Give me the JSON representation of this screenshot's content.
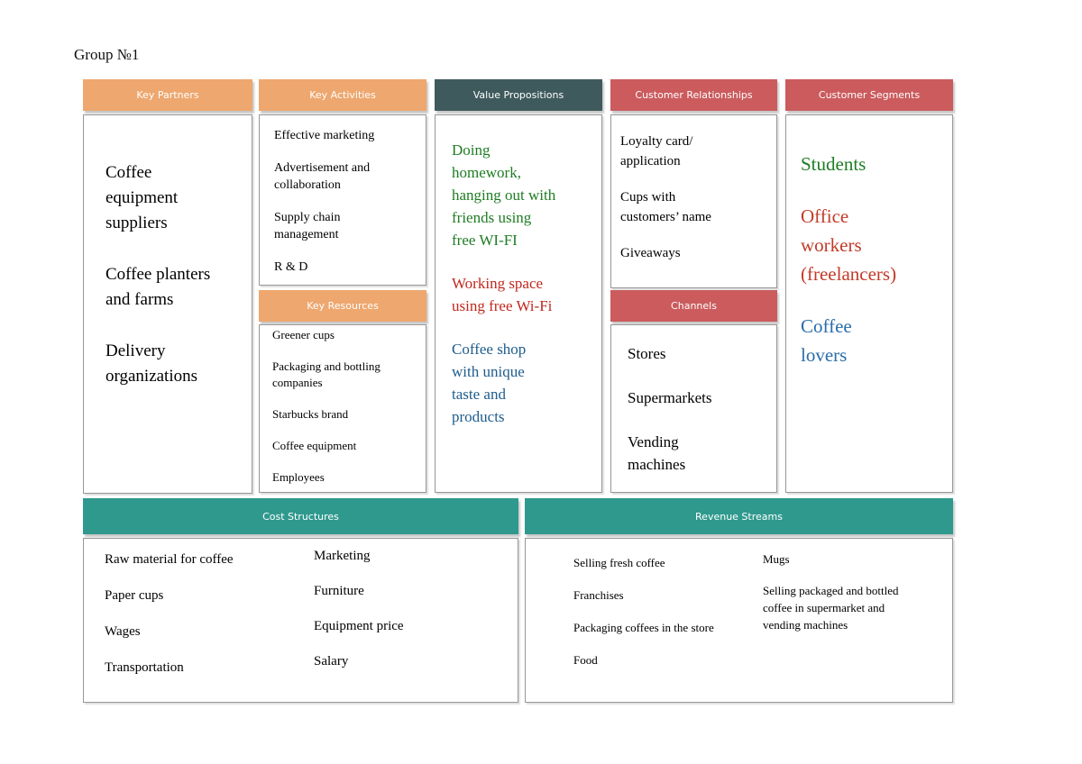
{
  "page": {
    "title": "Group №1"
  },
  "palette": {
    "orange": "#eda76f",
    "red": "#cb5b5d",
    "dark_slate": "#3f5a5c",
    "teal": "#2f998e",
    "border_gray": "#979797",
    "text_green": "#1e7d23",
    "text_red": "#c0281e",
    "text_blue": "#1e5c8c"
  },
  "sections": {
    "key_partners": {
      "header": "Key Partners",
      "items": [
        {
          "text": "Coffee\nequipment\nsuppliers"
        },
        {
          "text": "Coffee planters\nand farms"
        },
        {
          "text": "Delivery\norganizations"
        }
      ]
    },
    "key_activities": {
      "header": "Key Activities",
      "items": [
        {
          "text": "Effective marketing"
        },
        {
          "text": "Advertisement and\ncollaboration"
        },
        {
          "text": "Supply chain\nmanagement"
        },
        {
          "text": "R & D"
        }
      ]
    },
    "key_resources": {
      "header": "Key Resources",
      "items": [
        {
          "text": "Greener cups"
        },
        {
          "text": "Packaging and bottling\ncompanies"
        },
        {
          "text": "Starbucks brand"
        },
        {
          "text": "Coffee equipment"
        },
        {
          "text": "Employees"
        }
      ]
    },
    "value_propositions": {
      "header": "Value Propositions",
      "items": [
        {
          "text": "Doing\nhomework,\nhanging out with\nfriends using\nfree WI-FI",
          "color": "#1e7d23"
        },
        {
          "text": "Working space\nusing free Wi-Fi",
          "color": "#c0281e"
        },
        {
          "text": "Coffee shop\nwith unique\ntaste and\nproducts",
          "color": "#1e5c8c"
        }
      ]
    },
    "customer_relationships": {
      "header": "Customer Relationships",
      "items": [
        {
          "text": "Loyalty card/\napplication"
        },
        {
          "text": "Cups with\ncustomers’ name"
        },
        {
          "text": "Giveaways"
        }
      ]
    },
    "channels": {
      "header": "Channels",
      "items": [
        {
          "text": "Stores"
        },
        {
          "text": "Supermarkets"
        },
        {
          "text": "Vending\nmachines"
        }
      ]
    },
    "customer_segments": {
      "header": "Customer Segments",
      "items": [
        {
          "text": "Students",
          "color": "#1e7d23"
        },
        {
          "text": "Office\nworkers\n(freelancers)",
          "color": "#c23a28"
        },
        {
          "text": "Coffee\nlovers",
          "color": "#2a6caa"
        }
      ]
    },
    "cost_structures": {
      "header": "Cost Structures",
      "columns": [
        {
          "items": [
            {
              "text": "Raw material for coffee"
            },
            {
              "text": "Paper cups"
            },
            {
              "text": "Wages"
            },
            {
              "text": "Transportation"
            }
          ]
        },
        {
          "items": [
            {
              "text": "Marketing"
            },
            {
              "text": "Furniture"
            },
            {
              "text": "Equipment price"
            },
            {
              "text": "Salary"
            }
          ]
        }
      ]
    },
    "revenue_streams": {
      "header": "Revenue Streams",
      "columns": [
        {
          "items": [
            {
              "text": "Selling fresh coffee"
            },
            {
              "text": "Franchises"
            },
            {
              "text": "Packaging coffees in the store"
            },
            {
              "text": "Food"
            }
          ]
        },
        {
          "items": [
            {
              "text": "Mugs"
            },
            {
              "text": "Selling packaged and bottled\ncoffee in supermarket and\nvending machines"
            }
          ]
        }
      ]
    }
  }
}
